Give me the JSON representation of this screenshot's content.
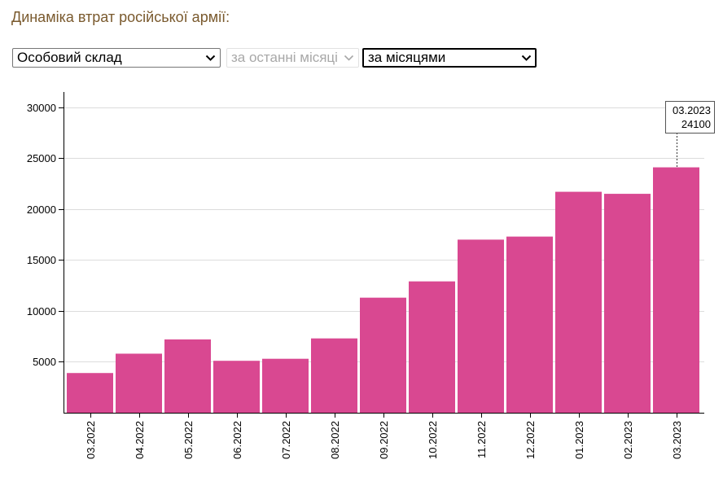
{
  "page": {
    "title": "Динаміка втрат російської армії:"
  },
  "controls": {
    "category": {
      "value": "Особовий склад",
      "icon": "chevron-down-icon"
    },
    "period": {
      "value": "за останні місяці",
      "icon": "chevron-down-icon"
    },
    "grouping": {
      "value": "за місяцями",
      "icon": "chevron-down-icon"
    }
  },
  "colors": {
    "bar": "#d94891",
    "title": "#7a5a2e",
    "grid": "#dcdcdc",
    "axis": "#000000"
  },
  "chart_data": {
    "type": "bar",
    "title": "Динаміка втрат російської армії:",
    "xlabel": "",
    "ylabel": "",
    "categories": [
      "03.2022",
      "04.2022",
      "05.2022",
      "06.2022",
      "07.2022",
      "08.2022",
      "09.2022",
      "10.2022",
      "11.2022",
      "12.2022",
      "01.2023",
      "02.2023",
      "03.2023"
    ],
    "values": [
      3900,
      5800,
      7200,
      5100,
      5300,
      7300,
      11300,
      12900,
      17000,
      17300,
      21700,
      21500,
      24100
    ],
    "ylim": [
      0,
      31500
    ],
    "yticks": [
      5000,
      10000,
      15000,
      20000,
      25000,
      30000
    ],
    "grid": true,
    "tooltip": {
      "label": "03.2023",
      "value": "24100"
    }
  }
}
